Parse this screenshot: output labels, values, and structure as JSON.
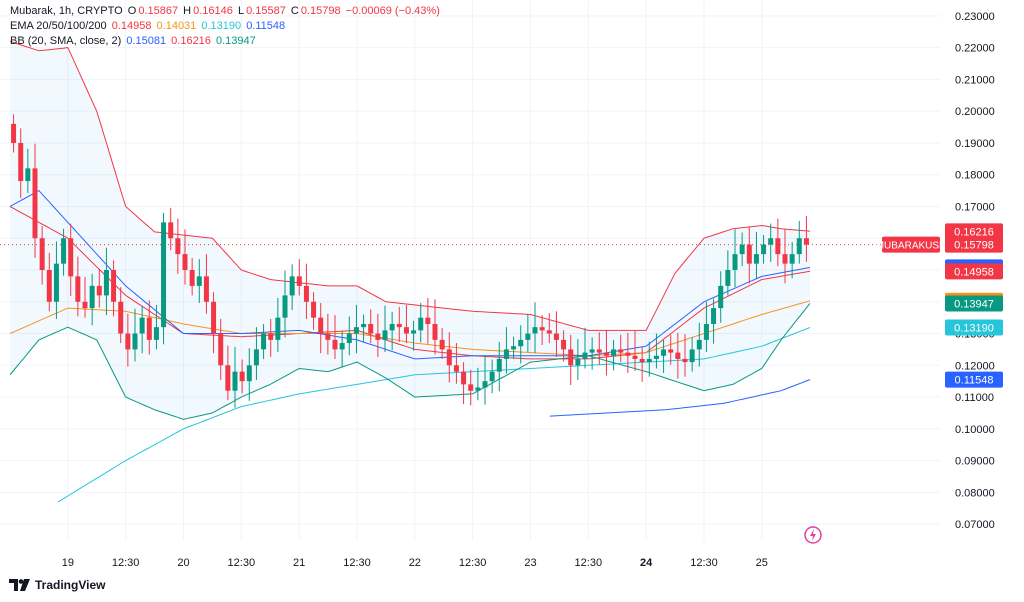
{
  "legend": {
    "symbol": "Mubarak, 1h, CRYPTO",
    "o_label": "O",
    "o_value": "0.15867",
    "h_label": "H",
    "h_value": "0.16146",
    "l_label": "L",
    "l_value": "0.15587",
    "c_label": "C",
    "c_value": "0.15798",
    "change": "−0.00069 (−0.43%)",
    "ema_label": "EMA 20/50/100/200",
    "ema_values": [
      "0.14958",
      "0.14031",
      "0.13190",
      "0.11548"
    ],
    "bb_label": "BB (20, SMA, close, 2)",
    "bb_values": [
      "0.15081",
      "0.16216",
      "0.13947"
    ]
  },
  "branding": {
    "logo_text": "TradingView"
  },
  "colors": {
    "up": "#089981",
    "down": "#f23645",
    "ema20": "#f23645",
    "ema50": "#f7931a",
    "ema100": "#26c6da",
    "ema200": "#2962ff",
    "bb_basis": "#2962ff",
    "bb_upper": "#f23645",
    "bb_lower": "#089981"
  },
  "chart_data": {
    "type": "candlestick",
    "symbol": "MUBARAKUSD",
    "ylim": [
      0.065,
      0.235
    ],
    "y_ticks": [
      "0.23000",
      "0.22000",
      "0.21000",
      "0.20000",
      "0.19000",
      "0.18000",
      "0.17000",
      "0.16000",
      "0.15000",
      "0.14000",
      "0.13000",
      "0.12000",
      "0.11000",
      "0.10000",
      "0.09000",
      "0.08000",
      "0.07000"
    ],
    "x_ticks": [
      "19",
      "12:30",
      "20",
      "12:30",
      "21",
      "12:30",
      "22",
      "12:30",
      "23",
      "12:30",
      "24",
      "12:30",
      "25"
    ],
    "x_tick_hours": [
      12,
      24,
      36,
      48,
      60,
      72,
      84,
      96,
      108,
      120,
      132,
      144,
      156
    ],
    "x_range_hours": [
      0,
      166
    ],
    "last_price": 0.15798,
    "price_labels": [
      {
        "text": "MUBARAKUSD",
        "value": 0.15798,
        "color": "#f23645",
        "side": "left"
      },
      {
        "text": "0.16216",
        "value": 0.16216,
        "color": "#f23645"
      },
      {
        "text": "0.15798",
        "value": 0.15798,
        "color": "#f23645"
      },
      {
        "text": "0.15081",
        "value": 0.15081,
        "color": "#2962ff"
      },
      {
        "text": "0.14958",
        "value": 0.14958,
        "color": "#f23645"
      },
      {
        "text": "0.14031",
        "value": 0.14031,
        "color": "#f7931a"
      },
      {
        "text": "0.13947",
        "value": 0.13947,
        "color": "#089981"
      },
      {
        "text": "0.13190",
        "value": 0.1319,
        "color": "#26c6da"
      },
      {
        "text": "0.11548",
        "value": 0.11548,
        "color": "#2962ff"
      }
    ],
    "closes": [
      0.19,
      0.178,
      0.182,
      0.16,
      0.15,
      0.14,
      0.152,
      0.16,
      0.148,
      0.14,
      0.138,
      0.145,
      0.142,
      0.15,
      0.14,
      0.13,
      0.125,
      0.13,
      0.135,
      0.128,
      0.132,
      0.165,
      0.16,
      0.155,
      0.15,
      0.145,
      0.148,
      0.14,
      0.13,
      0.12,
      0.112,
      0.118,
      0.115,
      0.12,
      0.125,
      0.13,
      0.128,
      0.135,
      0.142,
      0.148,
      0.145,
      0.14,
      0.135,
      0.13,
      0.128,
      0.125,
      0.127,
      0.13,
      0.132,
      0.133,
      0.13,
      0.128,
      0.131,
      0.133,
      0.132,
      0.13,
      0.131,
      0.135,
      0.133,
      0.128,
      0.125,
      0.12,
      0.118,
      0.114,
      0.112,
      0.113,
      0.115,
      0.118,
      0.122,
      0.125,
      0.126,
      0.128,
      0.13,
      0.132,
      0.131,
      0.13,
      0.128,
      0.125,
      0.12,
      0.122,
      0.124,
      0.125,
      0.124,
      0.123,
      0.125,
      0.124,
      0.123,
      0.122,
      0.121,
      0.122,
      0.123,
      0.125,
      0.124,
      0.122,
      0.121,
      0.125,
      0.128,
      0.133,
      0.138,
      0.145,
      0.15,
      0.155,
      0.158,
      0.152,
      0.155,
      0.158,
      0.16,
      0.155,
      0.152,
      0.155,
      0.16,
      0.158
    ],
    "series": [
      {
        "name": "EMA 20",
        "color": "#f23645",
        "x": [
          0,
          12,
          24,
          36,
          48,
          60,
          72,
          84,
          96,
          108,
          120,
          132,
          144,
          156,
          166
        ],
        "values": [
          0.17,
          0.16,
          0.142,
          0.13,
          0.129,
          0.13,
          0.131,
          0.125,
          0.123,
          0.122,
          0.122,
          0.124,
          0.138,
          0.147,
          0.1496
        ]
      },
      {
        "name": "EMA 50",
        "color": "#f7931a",
        "x": [
          0,
          12,
          24,
          36,
          48,
          60,
          72,
          84,
          96,
          108,
          120,
          132,
          144,
          156,
          166
        ],
        "values": [
          0.13,
          0.138,
          0.137,
          0.133,
          0.13,
          0.13,
          0.13,
          0.127,
          0.125,
          0.124,
          0.123,
          0.124,
          0.13,
          0.136,
          0.1403
        ]
      },
      {
        "name": "EMA 100",
        "color": "#26c6da",
        "x": [
          10,
          24,
          36,
          48,
          60,
          72,
          84,
          96,
          108,
          120,
          132,
          144,
          156,
          166
        ],
        "values": [
          0.077,
          0.09,
          0.1,
          0.107,
          0.111,
          0.114,
          0.117,
          0.118,
          0.119,
          0.12,
          0.121,
          0.122,
          0.126,
          0.1319
        ]
      },
      {
        "name": "EMA 200",
        "color": "#2962ff",
        "x": [
          112,
          124,
          136,
          148,
          160,
          166
        ],
        "values": [
          0.104,
          0.105,
          0.106,
          0.108,
          0.112,
          0.1155
        ]
      },
      {
        "name": "BB basis",
        "color": "#2962ff",
        "x": [
          0,
          6,
          12,
          24,
          36,
          48,
          60,
          72,
          84,
          96,
          108,
          120,
          132,
          144,
          156,
          166
        ],
        "values": [
          0.17,
          0.175,
          0.165,
          0.145,
          0.13,
          0.13,
          0.131,
          0.128,
          0.122,
          0.123,
          0.123,
          0.123,
          0.126,
          0.14,
          0.148,
          0.1508
        ]
      },
      {
        "name": "BB upper",
        "color": "#f23645",
        "x": [
          0,
          6,
          12,
          18,
          24,
          30,
          36,
          42,
          48,
          54,
          60,
          66,
          72,
          78,
          84,
          96,
          108,
          120,
          132,
          138,
          144,
          150,
          156,
          160,
          166
        ],
        "values": [
          0.222,
          0.219,
          0.22,
          0.2,
          0.17,
          0.162,
          0.161,
          0.16,
          0.15,
          0.147,
          0.146,
          0.145,
          0.145,
          0.14,
          0.139,
          0.137,
          0.136,
          0.131,
          0.131,
          0.149,
          0.16,
          0.163,
          0.164,
          0.163,
          0.1622
        ]
      },
      {
        "name": "BB lower",
        "color": "#089981",
        "x": [
          0,
          6,
          12,
          18,
          24,
          30,
          36,
          42,
          48,
          54,
          60,
          66,
          72,
          78,
          84,
          96,
          108,
          120,
          132,
          138,
          144,
          150,
          156,
          160,
          166
        ],
        "values": [
          0.117,
          0.128,
          0.132,
          0.128,
          0.11,
          0.106,
          0.103,
          0.105,
          0.11,
          0.114,
          0.119,
          0.118,
          0.121,
          0.116,
          0.11,
          0.111,
          0.121,
          0.123,
          0.118,
          0.115,
          0.112,
          0.114,
          0.119,
          0.128,
          0.1395
        ]
      }
    ]
  }
}
